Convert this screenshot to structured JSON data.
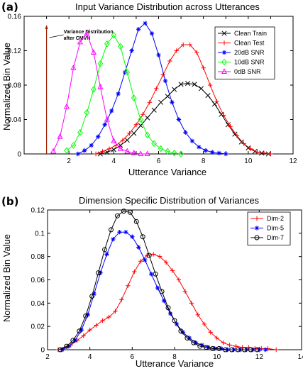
{
  "panels": [
    "(a)",
    "(b)"
  ],
  "chart_data": [
    {
      "type": "line",
      "title": "Input Variance Distribution across Utterances",
      "xlabel": "Utterance Variance",
      "ylabel": "Normalized Bin Value",
      "xlim": [
        0,
        12
      ],
      "ylim": [
        0,
        0.16
      ],
      "xticks": [
        1,
        2,
        3,
        4,
        5,
        6,
        7,
        8,
        9,
        10,
        11,
        12
      ],
      "xtick_labels": [
        "",
        "2",
        "",
        "4",
        "",
        "6",
        "",
        "8",
        "",
        "10",
        "",
        "12"
      ],
      "xtick_labels_at": [
        1,
        2,
        3,
        4,
        5,
        6,
        7,
        8,
        9,
        10,
        11,
        12
      ],
      "yticks": [
        0,
        0.04,
        0.08,
        0.12,
        0.16
      ],
      "ytick_labels": [
        "0",
        "0.04",
        "0.08",
        "0.12",
        "0.16"
      ],
      "grid": false,
      "legend_position": "top-right",
      "annotation": {
        "text_lines": [
          "Variance Distribution",
          "after CMVN"
        ],
        "x": 1.0
      },
      "series": [
        {
          "name": "Clean Train",
          "color": "#000000",
          "marker": "x",
          "x": [
            3.4,
            3.7,
            4.0,
            4.3,
            4.6,
            4.9,
            5.2,
            5.5,
            5.8,
            6.1,
            6.4,
            6.7,
            7.0,
            7.3,
            7.6,
            7.9,
            8.2,
            8.5,
            8.8,
            9.1,
            9.4,
            9.7,
            10.0,
            10.3,
            10.6,
            10.9
          ],
          "y": [
            0.0,
            0.002,
            0.005,
            0.01,
            0.016,
            0.024,
            0.033,
            0.042,
            0.051,
            0.06,
            0.067,
            0.075,
            0.081,
            0.082,
            0.081,
            0.076,
            0.068,
            0.058,
            0.046,
            0.034,
            0.023,
            0.014,
            0.007,
            0.003,
            0.001,
            0.0
          ]
        },
        {
          "name": "Clean Test",
          "color": "#ff0000",
          "marker": "+",
          "x": [
            3.2,
            3.5,
            3.8,
            4.1,
            4.4,
            4.7,
            5.0,
            5.3,
            5.6,
            5.9,
            6.2,
            6.5,
            6.8,
            7.1,
            7.4,
            7.7,
            8.0,
            8.3,
            8.6,
            8.9,
            9.2,
            9.5,
            9.8,
            10.1,
            10.4,
            10.7,
            11.0
          ],
          "y": [
            0.0,
            0.003,
            0.006,
            0.01,
            0.016,
            0.024,
            0.034,
            0.046,
            0.06,
            0.076,
            0.092,
            0.108,
            0.12,
            0.127,
            0.127,
            0.118,
            0.1,
            0.08,
            0.061,
            0.045,
            0.032,
            0.021,
            0.012,
            0.006,
            0.002,
            0.001,
            0.0
          ]
        },
        {
          "name": "20dB SNR",
          "color": "#0000ff",
          "marker": "*",
          "x": [
            2.4,
            2.7,
            3.0,
            3.3,
            3.6,
            3.9,
            4.2,
            4.5,
            4.8,
            5.1,
            5.4,
            5.7,
            6.0,
            6.3,
            6.6,
            6.9,
            7.2,
            7.5,
            7.8,
            8.1,
            8.4,
            8.7,
            9.0
          ],
          "y": [
            0.0,
            0.004,
            0.01,
            0.02,
            0.034,
            0.05,
            0.07,
            0.095,
            0.12,
            0.145,
            0.152,
            0.14,
            0.115,
            0.085,
            0.06,
            0.04,
            0.025,
            0.015,
            0.008,
            0.004,
            0.002,
            0.001,
            0.0
          ]
        },
        {
          "name": "10dB SNR",
          "color": "#00ff00",
          "marker": "diamond",
          "x": [
            1.9,
            2.2,
            2.5,
            2.8,
            3.1,
            3.4,
            3.7,
            4.0,
            4.3,
            4.6,
            4.9,
            5.2,
            5.5,
            5.8,
            6.1,
            6.4,
            6.7,
            7.0
          ],
          "y": [
            0.004,
            0.01,
            0.025,
            0.048,
            0.075,
            0.105,
            0.128,
            0.138,
            0.125,
            0.095,
            0.065,
            0.04,
            0.022,
            0.012,
            0.006,
            0.003,
            0.001,
            0.0
          ]
        },
        {
          "name": "0dB SNR",
          "color": "#ff00ff",
          "marker": "triangle",
          "x": [
            1.3,
            1.6,
            1.9,
            2.2,
            2.5,
            2.8,
            3.1,
            3.4,
            3.7,
            4.0,
            4.3,
            4.6,
            4.9,
            5.2,
            5.5
          ],
          "y": [
            0.003,
            0.02,
            0.055,
            0.1,
            0.13,
            0.14,
            0.118,
            0.078,
            0.04,
            0.015,
            0.006,
            0.003,
            0.001,
            0.0,
            0.0
          ]
        }
      ]
    },
    {
      "type": "line",
      "title": "Dimension Specific Distribution of Variances",
      "xlabel": "Utterance Variance",
      "ylabel": "Normalized Bin Value",
      "xlim": [
        2,
        14
      ],
      "ylim": [
        0,
        0.12
      ],
      "xticks": [
        2,
        4,
        6,
        8,
        10,
        12,
        14
      ],
      "xtick_labels": [
        "2",
        "4",
        "6",
        "8",
        "10",
        "12",
        "14"
      ],
      "yticks": [
        0,
        0.02,
        0.04,
        0.06,
        0.08,
        0.1,
        0.12
      ],
      "ytick_labels": [
        "0",
        "0.02",
        "0.04",
        "0.06",
        "0.08",
        "0.1",
        "0.12"
      ],
      "grid": false,
      "legend_position": "top-right",
      "series": [
        {
          "name": "Dim-2",
          "color": "#ff0000",
          "marker": "+",
          "x": [
            2.5,
            2.8,
            3.1,
            3.4,
            3.7,
            4.0,
            4.3,
            4.6,
            4.9,
            5.2,
            5.5,
            5.8,
            6.1,
            6.4,
            6.7,
            7.0,
            7.3,
            7.6,
            7.9,
            8.2,
            8.5,
            8.8,
            9.1,
            9.4,
            9.7,
            10.0,
            10.3,
            10.6,
            10.9,
            11.2,
            11.5,
            11.8,
            12.1,
            12.4,
            12.8
          ],
          "y": [
            0.0,
            0.002,
            0.004,
            0.008,
            0.012,
            0.017,
            0.021,
            0.025,
            0.028,
            0.033,
            0.043,
            0.055,
            0.067,
            0.076,
            0.081,
            0.082,
            0.08,
            0.075,
            0.068,
            0.06,
            0.05,
            0.04,
            0.03,
            0.022,
            0.015,
            0.01,
            0.006,
            0.004,
            0.003,
            0.002,
            0.002,
            0.001,
            0.001,
            0.001,
            0.0
          ]
        },
        {
          "name": "Dim-5",
          "color": "#0000ff",
          "marker": "*",
          "x": [
            2.7,
            3.0,
            3.3,
            3.6,
            3.9,
            4.2,
            4.5,
            4.8,
            5.1,
            5.4,
            5.7,
            6.0,
            6.3,
            6.6,
            6.9,
            7.2,
            7.5,
            7.8,
            8.1,
            8.4,
            8.7,
            9.0,
            9.3,
            9.6,
            9.9,
            10.2,
            10.5,
            10.8,
            11.1,
            11.4,
            11.7,
            12.0,
            12.3
          ],
          "y": [
            0.0,
            0.003,
            0.008,
            0.017,
            0.03,
            0.048,
            0.066,
            0.082,
            0.095,
            0.101,
            0.101,
            0.097,
            0.088,
            0.077,
            0.065,
            0.053,
            0.042,
            0.031,
            0.022,
            0.015,
            0.01,
            0.006,
            0.004,
            0.002,
            0.001,
            0.001,
            0.0,
            0.0,
            0.0,
            0.0,
            0.0,
            0.0,
            0.0
          ]
        },
        {
          "name": "Dim-7",
          "color": "#000000",
          "marker": "o",
          "x": [
            2.6,
            2.9,
            3.2,
            3.5,
            3.8,
            4.1,
            4.4,
            4.7,
            5.0,
            5.3,
            5.6,
            5.9,
            6.2,
            6.5,
            6.8,
            7.1,
            7.4,
            7.7,
            8.0,
            8.3,
            8.6,
            8.9,
            9.2,
            9.5,
            9.8,
            10.1,
            10.4,
            10.7,
            11.0,
            11.3,
            11.6,
            11.9
          ],
          "y": [
            0.0,
            0.003,
            0.008,
            0.016,
            0.029,
            0.046,
            0.066,
            0.086,
            0.103,
            0.115,
            0.119,
            0.118,
            0.11,
            0.097,
            0.081,
            0.065,
            0.05,
            0.036,
            0.025,
            0.016,
            0.01,
            0.006,
            0.003,
            0.002,
            0.001,
            0.001,
            0.0,
            0.0,
            0.0,
            0.0,
            0.0,
            0.0
          ]
        }
      ]
    }
  ]
}
